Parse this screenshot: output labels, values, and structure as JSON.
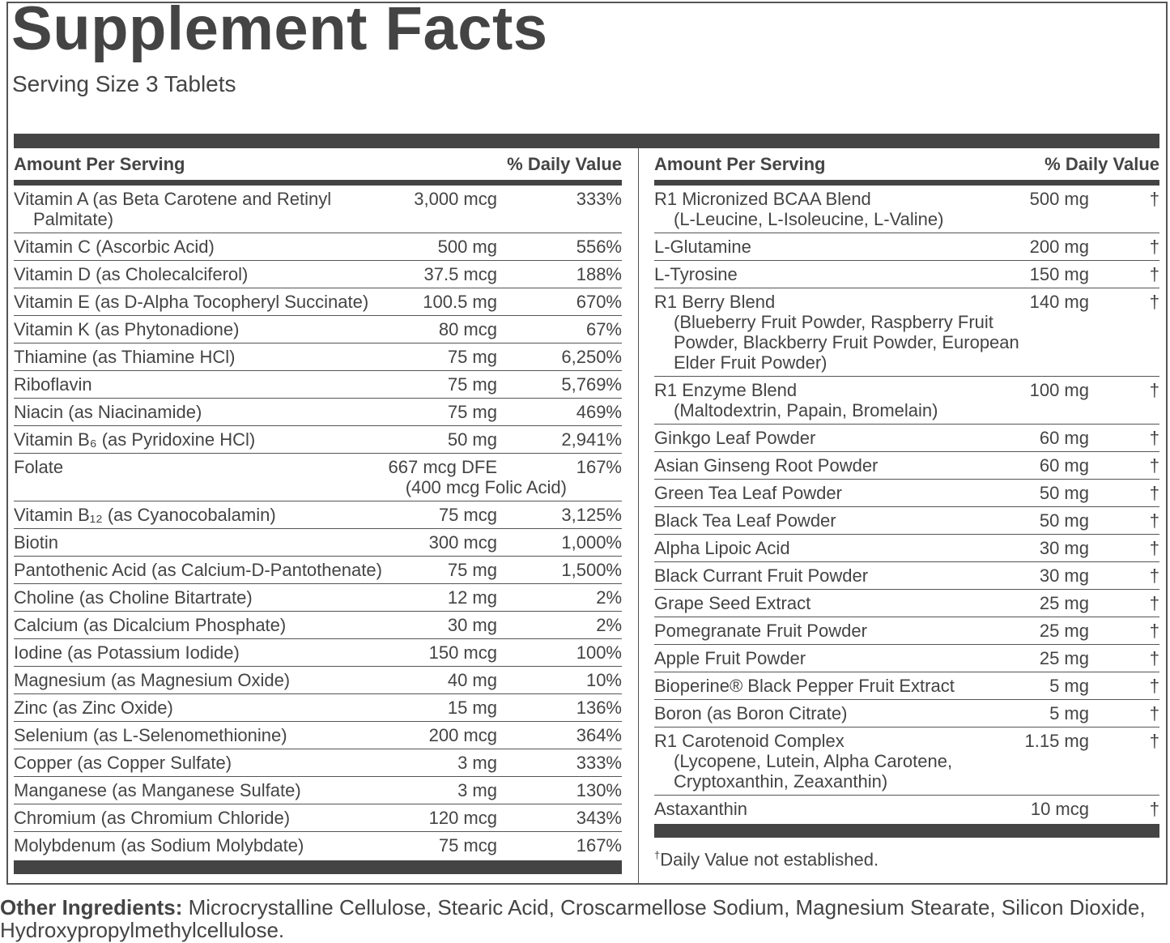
{
  "title": "Supplement Facts",
  "serving_size": "Serving Size 3 Tablets",
  "header": {
    "amount_per_serving": "Amount Per Serving",
    "daily_value": "% Daily Value"
  },
  "left_rows": [
    {
      "name": "Vitamin A (as Beta Carotene and Retinyl",
      "sub": "Palmitate)",
      "amount": "3,000 mcg",
      "dv": "333%"
    },
    {
      "name": "Vitamin C (Ascorbic Acid)",
      "amount": "500 mg",
      "dv": "556%"
    },
    {
      "name": "Vitamin D (as Cholecalciferol)",
      "amount": "37.5 mcg",
      "dv": "188%"
    },
    {
      "name": "Vitamin E (as D-Alpha Tocopheryl Succinate)",
      "amount": "100.5 mg",
      "dv": "670%"
    },
    {
      "name": "Vitamin K (as Phytonadione)",
      "amount": "80 mcg",
      "dv": "67%"
    },
    {
      "name": "Thiamine (as Thiamine HCl)",
      "amount": "75 mg",
      "dv": "6,250%"
    },
    {
      "name": "Riboflavin",
      "amount": "75 mg",
      "dv": "5,769%"
    },
    {
      "name": "Niacin (as Niacinamide)",
      "amount": "75 mg",
      "dv": "469%"
    },
    {
      "name": "Vitamin B₆ (as Pyridoxine HCl)",
      "amount": "50 mg",
      "dv": "2,941%"
    },
    {
      "name": "Folate",
      "amount": "667 mcg DFE",
      "amount2": "(400 mcg Folic Acid)",
      "dv": "167%"
    },
    {
      "name": "Vitamin B₁₂ (as Cyanocobalamin)",
      "amount": "75 mcg",
      "dv": "3,125%"
    },
    {
      "name": "Biotin",
      "amount": "300 mcg",
      "dv": "1,000%"
    },
    {
      "name": "Pantothenic Acid (as Calcium-D-Pantothenate)",
      "amount": "75 mg",
      "dv": "1,500%"
    },
    {
      "name": "Choline (as Choline Bitartrate)",
      "amount": "12 mg",
      "dv": "2%"
    },
    {
      "name": "Calcium (as Dicalcium Phosphate)",
      "amount": "30 mg",
      "dv": "2%"
    },
    {
      "name": "Iodine (as Potassium Iodide)",
      "amount": "150 mcg",
      "dv": "100%"
    },
    {
      "name": "Magnesium (as Magnesium Oxide)",
      "amount": "40 mg",
      "dv": "10%"
    },
    {
      "name": "Zinc (as Zinc Oxide)",
      "amount": "15 mg",
      "dv": "136%"
    },
    {
      "name": "Selenium (as L-Selenomethionine)",
      "amount": "200 mcg",
      "dv": "364%"
    },
    {
      "name": "Copper (as Copper Sulfate)",
      "amount": "3 mg",
      "dv": "333%"
    },
    {
      "name": "Manganese (as Manganese Sulfate)",
      "amount": "3 mg",
      "dv": "130%"
    },
    {
      "name": "Chromium (as Chromium Chloride)",
      "amount": "120 mcg",
      "dv": "343%"
    },
    {
      "name": "Molybdenum (as Sodium Molybdate)",
      "amount": "75 mcg",
      "dv": "167%"
    }
  ],
  "right_rows": [
    {
      "name": "R1 Micronized BCAA Blend",
      "sub": "(L-Leucine, L-Isoleucine, L-Valine)",
      "amount": "500 mg",
      "dv": "†"
    },
    {
      "name": "L-Glutamine",
      "amount": "200 mg",
      "dv": "†"
    },
    {
      "name": "L-Tyrosine",
      "amount": "150 mg",
      "dv": "†"
    },
    {
      "name": "R1 Berry Blend",
      "sub": "(Blueberry Fruit Powder, Raspberry Fruit Powder, Blackberry Fruit Powder, European Elder Fruit Powder)",
      "amount": "140 mg",
      "dv": "†"
    },
    {
      "name": "R1 Enzyme Blend",
      "sub": "(Maltodextrin, Papain, Bromelain)",
      "amount": "100 mg",
      "dv": "†"
    },
    {
      "name": "Ginkgo Leaf Powder",
      "amount": "60 mg",
      "dv": "†"
    },
    {
      "name": "Asian Ginseng Root Powder",
      "amount": "60 mg",
      "dv": "†"
    },
    {
      "name": "Green Tea Leaf Powder",
      "amount": "50 mg",
      "dv": "†"
    },
    {
      "name": "Black Tea Leaf Powder",
      "amount": "50 mg",
      "dv": "†"
    },
    {
      "name": "Alpha Lipoic Acid",
      "amount": "30 mg",
      "dv": "†"
    },
    {
      "name": "Black Currant Fruit Powder",
      "amount": "30 mg",
      "dv": "†"
    },
    {
      "name": "Grape Seed Extract",
      "amount": "25 mg",
      "dv": "†"
    },
    {
      "name": "Pomegranate Fruit Powder",
      "amount": "25 mg",
      "dv": "†"
    },
    {
      "name": "Apple Fruit Powder",
      "amount": "25 mg",
      "dv": "†"
    },
    {
      "name": "Bioperine® Black Pepper Fruit Extract",
      "amount": "5 mg",
      "dv": "†"
    },
    {
      "name": "Boron (as Boron Citrate)",
      "amount": "5 mg",
      "dv": "†"
    },
    {
      "name": "R1 Carotenoid Complex",
      "sub": "(Lycopene, Lutein, Alpha Carotene, Cryptoxanthin, Zeaxanthin)",
      "amount": "1.15 mg",
      "dv": "†"
    },
    {
      "name": "Astaxanthin",
      "amount": "10 mcg",
      "dv": "†"
    }
  ],
  "footnote": {
    "symbol": "†",
    "text": "Daily Value not established."
  },
  "other_ingredients": {
    "label": "Other Ingredients:",
    "text": "Microcrystalline Cellulose, Stearic Acid, Croscarmellose Sodium, Magnesium Stearate, Silicon Dioxide, Hydroxypropylmethylcellulose."
  },
  "colors": {
    "text": "#444444",
    "bars": "#444444"
  }
}
